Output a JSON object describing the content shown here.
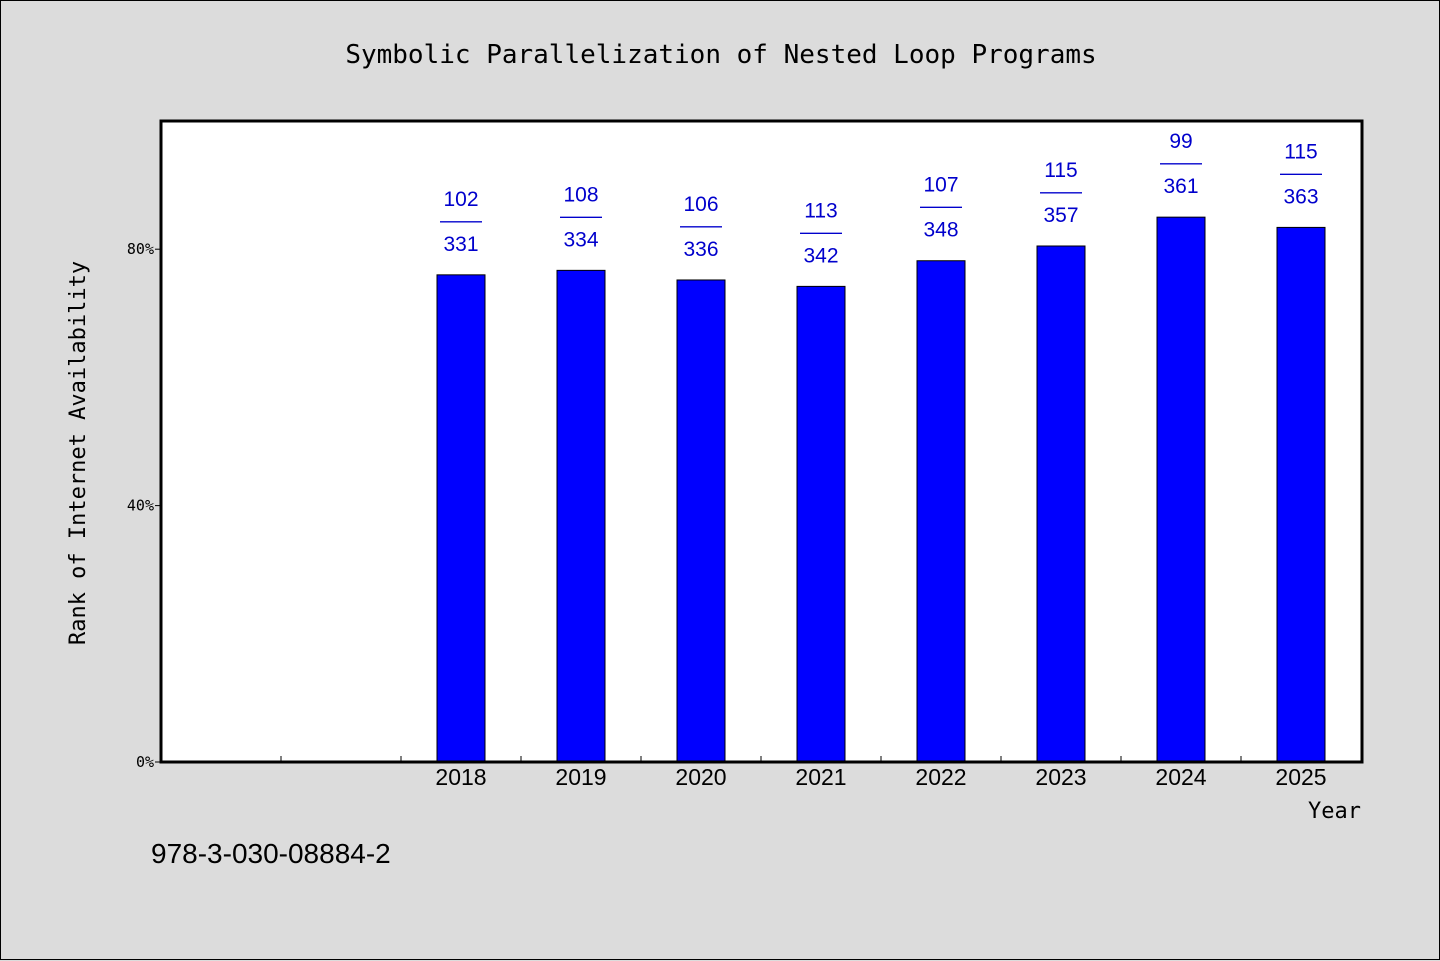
{
  "chart_data": {
    "type": "bar",
    "title": "Symbolic Parallelization of Nested Loop Programs",
    "xlabel": "Year",
    "ylabel": "Rank of Internet Availability",
    "categories": [
      "2018",
      "2019",
      "2020",
      "2021",
      "2022",
      "2023",
      "2024",
      "2025"
    ],
    "values": [
      76.0,
      76.7,
      75.2,
      74.2,
      78.2,
      80.5,
      85.0,
      83.4
    ],
    "labels_top": [
      "102",
      "108",
      "106",
      "113",
      "107",
      "115",
      "99",
      "115"
    ],
    "labels_sep": "——",
    "labels_bottom": [
      "331",
      "334",
      "336",
      "342",
      "348",
      "357",
      "361",
      "363"
    ],
    "ylim": [
      0,
      100
    ],
    "yticks": [
      0,
      40,
      80
    ],
    "ytick_labels": [
      "0%",
      "40%",
      "80%"
    ],
    "bar_color": "#0000ff",
    "label_color": "#0000cc",
    "grid": false
  },
  "footer": {
    "isbn": "978-3-030-08884-2"
  }
}
